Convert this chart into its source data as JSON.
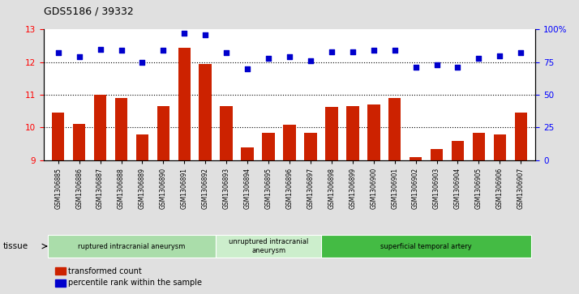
{
  "title": "GDS5186 / 39332",
  "samples": [
    "GSM1306885",
    "GSM1306886",
    "GSM1306887",
    "GSM1306888",
    "GSM1306889",
    "GSM1306890",
    "GSM1306891",
    "GSM1306892",
    "GSM1306893",
    "GSM1306894",
    "GSM1306895",
    "GSM1306896",
    "GSM1306897",
    "GSM1306898",
    "GSM1306899",
    "GSM1306900",
    "GSM1306901",
    "GSM1306902",
    "GSM1306903",
    "GSM1306904",
    "GSM1306905",
    "GSM1306906",
    "GSM1306907"
  ],
  "bar_values": [
    10.45,
    10.1,
    11.0,
    10.9,
    9.8,
    10.65,
    12.45,
    11.95,
    10.65,
    9.38,
    9.85,
    10.08,
    9.85,
    10.62,
    10.65,
    10.7,
    10.9,
    9.1,
    9.35,
    9.58,
    9.85,
    9.8,
    10.45
  ],
  "percentile_values": [
    82,
    79,
    85,
    84,
    75,
    84,
    97,
    96,
    82,
    70,
    78,
    79,
    76,
    83,
    83,
    84,
    84,
    71,
    73,
    71,
    78,
    80,
    82
  ],
  "bar_color": "#cc2200",
  "dot_color": "#0000cc",
  "ylim_left": [
    9,
    13
  ],
  "ylim_right": [
    0,
    100
  ],
  "yticks_left": [
    9,
    10,
    11,
    12,
    13
  ],
  "yticks_right": [
    0,
    25,
    50,
    75,
    100
  ],
  "grid_lines": [
    10,
    11,
    12
  ],
  "tissue_groups": [
    {
      "label": "ruptured intracranial aneurysm",
      "start": 0,
      "end": 8,
      "color": "#aaddaa"
    },
    {
      "label": "unruptured intracranial\naneurysm",
      "start": 8,
      "end": 13,
      "color": "#cceecc"
    },
    {
      "label": "superficial temporal artery",
      "start": 13,
      "end": 23,
      "color": "#44bb44"
    }
  ],
  "legend_bar_label": "transformed count",
  "legend_dot_label": "percentile rank within the sample",
  "tissue_label": "tissue",
  "background_color": "#e0e0e0",
  "plot_bg_color": "#ffffff"
}
